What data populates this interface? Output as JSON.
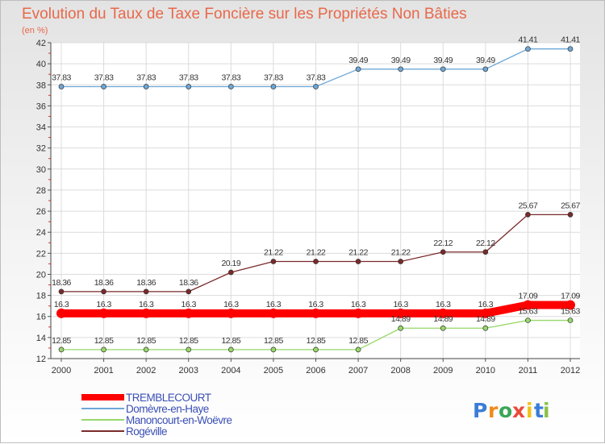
{
  "chart_data": {
    "type": "line",
    "title": "Evolution du Taux de Taxe Foncière sur les Propriétés Non Bâties",
    "subtitle": "(en %)",
    "categories": [
      "2000",
      "2001",
      "2002",
      "2003",
      "2004",
      "2005",
      "2006",
      "2007",
      "2008",
      "2009",
      "2010",
      "2011",
      "2012"
    ],
    "ylim": [
      12,
      42
    ],
    "yticks": [
      12,
      14,
      16,
      18,
      20,
      22,
      24,
      26,
      28,
      30,
      32,
      34,
      36,
      38,
      40,
      42
    ],
    "grid": true,
    "legend_position": "bottom-left",
    "series": [
      {
        "name": "TREMBLECOURT",
        "color": "#ff0000",
        "values": [
          16.3,
          16.3,
          16.3,
          16.3,
          16.3,
          16.3,
          16.3,
          16.3,
          16.3,
          16.3,
          16.3,
          17.09,
          17.09
        ],
        "labels": [
          "16.3",
          "16.3",
          "16.3",
          "16.3",
          "16.3",
          "16.3",
          "16.3",
          "16.3",
          "16.3",
          "16.3",
          "16.3",
          "17.09",
          "17.09"
        ]
      },
      {
        "name": "Domèvre-en-Haye",
        "color": "#6ea7d6",
        "values": [
          37.83,
          37.83,
          37.83,
          37.83,
          37.83,
          37.83,
          37.83,
          39.49,
          39.49,
          39.49,
          39.49,
          41.41,
          41.41
        ],
        "labels": [
          "37.83",
          "37.83",
          "37.83",
          "37.83",
          "37.83",
          "37.83",
          "37.83",
          "39.49",
          "39.49",
          "39.49",
          "39.49",
          "41.41",
          "41.41"
        ]
      },
      {
        "name": "Manoncourt-en-Woëvre",
        "color": "#97d86a",
        "values": [
          12.85,
          12.85,
          12.85,
          12.85,
          12.85,
          12.85,
          12.85,
          12.85,
          14.89,
          14.89,
          14.89,
          15.63,
          15.63
        ],
        "labels": [
          "12.85",
          "12.85",
          "12.85",
          "12.85",
          "12.85",
          "12.85",
          "12.85",
          "12.85",
          "14.89",
          "14.89",
          "14.89",
          "15.63",
          "15.63"
        ]
      },
      {
        "name": "Rogéville",
        "color": "#7b2a2a",
        "values": [
          18.36,
          18.36,
          18.36,
          18.36,
          20.19,
          21.22,
          21.22,
          21.22,
          21.22,
          22.12,
          22.12,
          25.67,
          25.67
        ],
        "labels": [
          "18.36",
          "18.36",
          "18.36",
          "18.36",
          "20.19",
          "21.22",
          "21.22",
          "21.22",
          "21.22",
          "22.12",
          "22.12",
          "25.67",
          "25.67"
        ]
      }
    ]
  },
  "logo": {
    "letters": [
      "P",
      "r",
      "o",
      "x",
      "i",
      "t",
      "i"
    ],
    "colors": [
      "#3b7dd8",
      "#f08a1c",
      "#3aa655",
      "#e94b3c",
      "#f2c118",
      "#3b7dd8",
      "#8ac249"
    ]
  }
}
